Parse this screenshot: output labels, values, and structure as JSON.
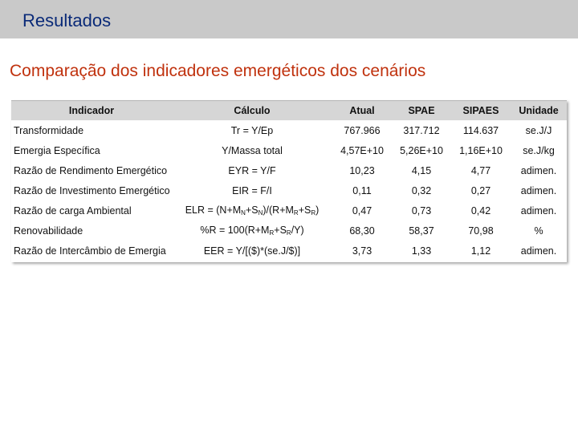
{
  "header": {
    "title": "Resultados"
  },
  "subtitle": "Comparação dos indicadores emergéticos dos cenários",
  "table": {
    "columns": [
      "Indicador",
      "Cálculo",
      "Atual",
      "SPAE",
      "SIPAES",
      "Unidade"
    ],
    "rows": [
      {
        "indicador": "Transformidade",
        "calc": [
          "Tr = Y/Ep"
        ],
        "atual": "767.966",
        "spae": "317.712",
        "sipaes": "114.637",
        "unidade": "se.J/J"
      },
      {
        "indicador": "Emergia Específica",
        "calc": [
          "Y/Massa total"
        ],
        "atual": "4,57E+10",
        "spae": "5,26E+10",
        "sipaes": "1,16E+10",
        "unidade": "se.J/kg"
      },
      {
        "indicador": "Razão de Rendimento Emergético",
        "calc": [
          "EYR = Y/F"
        ],
        "atual": "10,23",
        "spae": "4,15",
        "sipaes": "4,77",
        "unidade": "adimen."
      },
      {
        "indicador": "Razão de Investimento Emergético",
        "calc": [
          "EIR = F/I"
        ],
        "atual": "0,11",
        "spae": "0,32",
        "sipaes": "0,27",
        "unidade": "adimen."
      },
      {
        "indicador": "Razão de carga Ambiental",
        "calc": [
          "ELR = (N+M",
          "N",
          "+S",
          "N",
          ")/(R+M",
          "R",
          "+S",
          "R",
          ")"
        ],
        "atual": "0,47",
        "spae": "0,73",
        "sipaes": "0,42",
        "unidade": "adimen."
      },
      {
        "indicador": "Renovabilidade",
        "calc": [
          "%R = 100(R+M",
          "R",
          "+S",
          "R",
          "/Y)"
        ],
        "atual": "68,30",
        "spae": "58,37",
        "sipaes": "70,98",
        "unidade": "%"
      },
      {
        "indicador": "Razão de Intercâmbio de Emergia",
        "calc": [
          "EER = Y/[($)*(se.J/$)]"
        ],
        "atual": "3,73",
        "spae": "1,33",
        "sipaes": "1,12",
        "unidade": "adimen."
      }
    ]
  }
}
